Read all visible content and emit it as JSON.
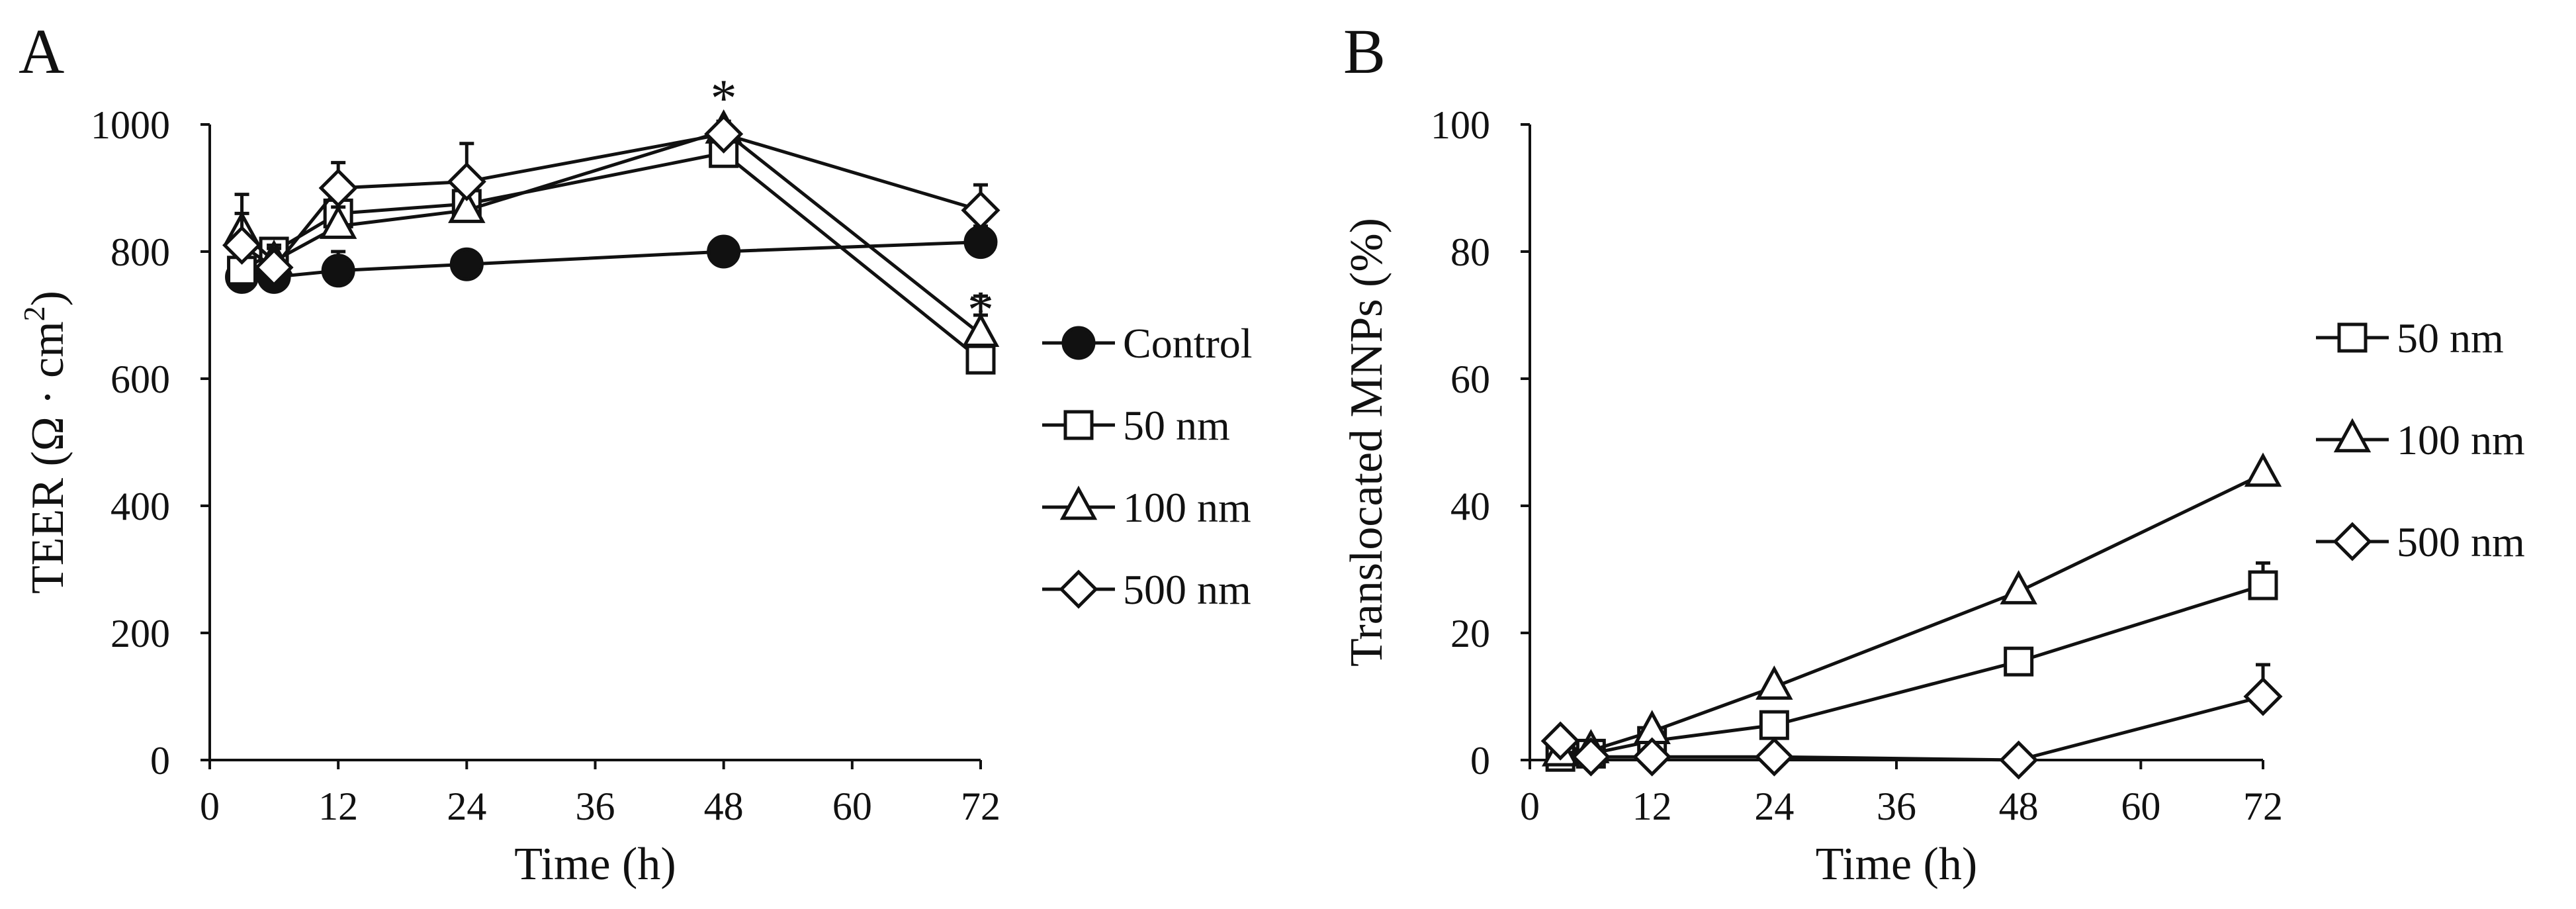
{
  "chart_data": [
    {
      "panel": "A",
      "type": "line",
      "xlabel": "Time (h)",
      "ylabel_main": "TEER (Ω · cm",
      "ylabel_sup": "2",
      "ylabel_close": ")",
      "xlim": [
        0,
        72
      ],
      "ylim": [
        0,
        1000
      ],
      "xticks": [
        0,
        12,
        24,
        36,
        48,
        60,
        72
      ],
      "yticks": [
        0,
        200,
        400,
        600,
        800,
        1000
      ],
      "x": [
        3,
        6,
        12,
        24,
        48,
        72
      ],
      "series": [
        {
          "name": "Control",
          "marker": "circle-filled",
          "values": [
            760,
            760,
            770,
            780,
            800,
            815
          ],
          "errors": [
            25,
            20,
            30,
            10,
            15,
            25
          ]
        },
        {
          "name": "50 nm",
          "marker": "square-open",
          "values": [
            770,
            800,
            860,
            875,
            955,
            630
          ],
          "errors": [
            30,
            20,
            40,
            30,
            20,
            100
          ]
        },
        {
          "name": "100 nm",
          "marker": "triangle-open",
          "values": [
            830,
            785,
            840,
            865,
            990,
            670
          ],
          "errors": [
            30,
            25,
            30,
            40,
            15,
            30
          ]
        },
        {
          "name": "500 nm",
          "marker": "diamond-open",
          "values": [
            810,
            775,
            900,
            910,
            985,
            865
          ],
          "errors": [
            80,
            30,
            40,
            60,
            20,
            40
          ]
        }
      ],
      "annotations": [
        {
          "text": "*",
          "x": 48,
          "y": 1045
        },
        {
          "text": "*",
          "x": 72,
          "y": 712
        }
      ]
    },
    {
      "panel": "B",
      "type": "line",
      "xlabel": "Time (h)",
      "ylabel": "Translocated MNPs (%)",
      "xlim": [
        0,
        72
      ],
      "ylim": [
        0,
        100
      ],
      "xticks": [
        0,
        12,
        24,
        36,
        48,
        60,
        72
      ],
      "yticks": [
        0,
        20,
        40,
        60,
        80,
        100
      ],
      "x": [
        3,
        6,
        12,
        24,
        48,
        72
      ],
      "series": [
        {
          "name": "50 nm",
          "marker": "square-open",
          "values": [
            0.5,
            1.0,
            3.0,
            5.5,
            15.5,
            27.5
          ],
          "errors": [
            0.3,
            0.3,
            0.5,
            1.0,
            1.0,
            3.5
          ]
        },
        {
          "name": "100 nm",
          "marker": "triangle-open",
          "values": [
            1.0,
            1.5,
            4.5,
            11.5,
            26.5,
            45.0
          ],
          "errors": [
            0.3,
            0.3,
            0.5,
            1.0,
            1.0,
            1.0
          ]
        },
        {
          "name": "500 nm",
          "marker": "diamond-open",
          "values": [
            3.0,
            0.5,
            0.5,
            0.5,
            0.0,
            10.0
          ],
          "errors": [
            0.3,
            0.3,
            0.3,
            0.3,
            0.3,
            5.0
          ]
        }
      ]
    }
  ]
}
